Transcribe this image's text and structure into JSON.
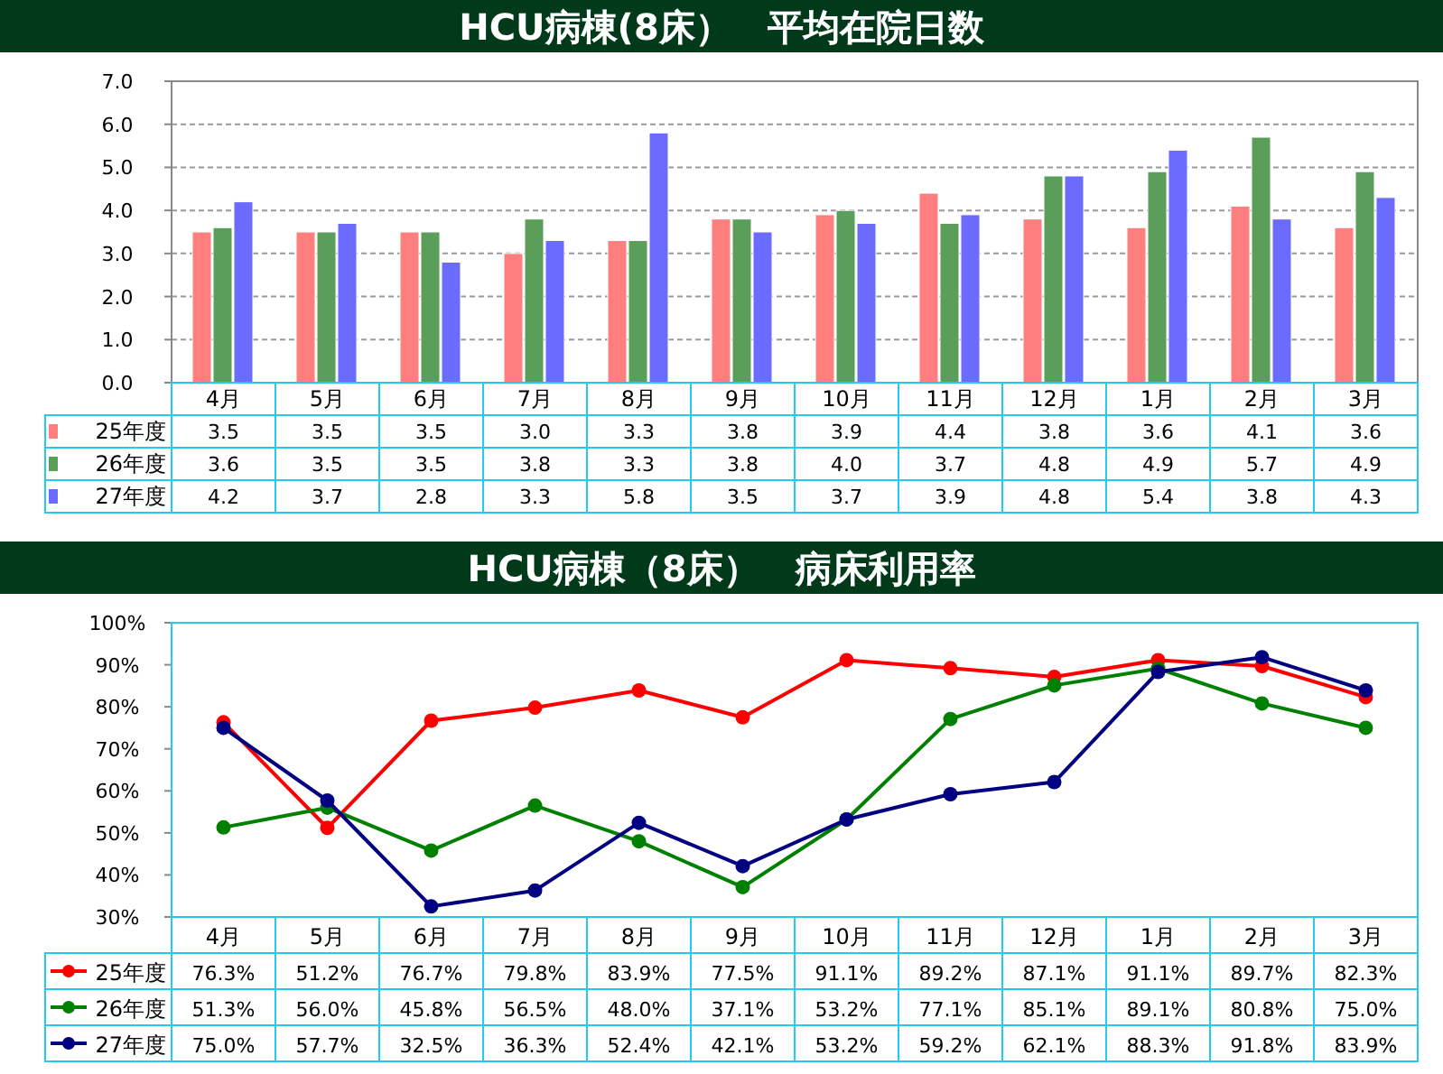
{
  "chart_data": [
    {
      "type": "bar",
      "title": "HCU病棟(8床）　平均在院日数",
      "categories": [
        "4月",
        "5月",
        "6月",
        "7月",
        "8月",
        "9月",
        "10月",
        "11月",
        "12月",
        "1月",
        "2月",
        "3月"
      ],
      "series": [
        {
          "name": "25年度",
          "color": "#ff7f7f",
          "values": [
            3.5,
            3.5,
            3.5,
            3.0,
            3.3,
            3.8,
            3.9,
            4.4,
            3.8,
            3.6,
            4.1,
            3.6
          ],
          "value_labels": [
            "3.5",
            "3.5",
            "3.5",
            "3.0",
            "3.3",
            "3.8",
            "3.9",
            "4.4",
            "3.8",
            "3.6",
            "4.1",
            "3.6"
          ]
        },
        {
          "name": "26年度",
          "color": "#5a9e5a",
          "values": [
            3.6,
            3.5,
            3.5,
            3.8,
            3.3,
            3.8,
            4.0,
            3.7,
            4.8,
            4.9,
            5.7,
            4.9
          ],
          "value_labels": [
            "3.6",
            "3.5",
            "3.5",
            "3.8",
            "3.3",
            "3.8",
            "4.0",
            "3.7",
            "4.8",
            "4.9",
            "5.7",
            "4.9"
          ]
        },
        {
          "name": "27年度",
          "color": "#6b6bff",
          "values": [
            4.2,
            3.7,
            2.8,
            3.3,
            5.8,
            3.5,
            3.7,
            3.9,
            4.8,
            5.4,
            3.8,
            4.3
          ],
          "value_labels": [
            "4.2",
            "3.7",
            "2.8",
            "3.3",
            "5.8",
            "3.5",
            "3.7",
            "3.9",
            "4.8",
            "5.4",
            "3.8",
            "4.3"
          ]
        }
      ],
      "ylim": [
        0,
        7
      ],
      "yticks": [
        {
          "value": 0,
          "label": "0.0"
        },
        {
          "value": 1,
          "label": "1.0"
        },
        {
          "value": 2,
          "label": "2.0"
        },
        {
          "value": 3,
          "label": "3.0"
        },
        {
          "value": 4,
          "label": "4.0"
        },
        {
          "value": 5,
          "label": "5.0"
        },
        {
          "value": 6,
          "label": "6.0"
        },
        {
          "value": 7,
          "label": "7.0"
        }
      ],
      "grid": "y",
      "legend": "bottom left"
    },
    {
      "type": "line",
      "title": "HCU病棟（8床）　病床利用率",
      "categories": [
        "4月",
        "5月",
        "6月",
        "7月",
        "8月",
        "9月",
        "10月",
        "11月",
        "12月",
        "1月",
        "2月",
        "3月"
      ],
      "series": [
        {
          "name": "25年度",
          "color": "#ff0000",
          "values": [
            76.3,
            51.2,
            76.7,
            79.8,
            83.9,
            77.5,
            91.1,
            89.2,
            87.1,
            91.1,
            89.7,
            82.3
          ],
          "value_labels": [
            "76.3%",
            "51.2%",
            "76.7%",
            "79.8%",
            "83.9%",
            "77.5%",
            "91.1%",
            "89.2%",
            "87.1%",
            "91.1%",
            "89.7%",
            "82.3%"
          ]
        },
        {
          "name": "26年度",
          "color": "#008000",
          "values": [
            51.3,
            56.0,
            45.8,
            56.5,
            48.0,
            37.1,
            53.2,
            77.1,
            85.1,
            89.1,
            80.8,
            75.0
          ],
          "value_labels": [
            "51.3%",
            "56.0%",
            "45.8%",
            "56.5%",
            "48.0%",
            "37.1%",
            "53.2%",
            "77.1%",
            "85.1%",
            "89.1%",
            "80.8%",
            "75.0%"
          ]
        },
        {
          "name": "27年度",
          "color": "#000080",
          "values": [
            75.0,
            57.7,
            32.5,
            36.3,
            52.4,
            42.1,
            53.2,
            59.2,
            62.1,
            88.3,
            91.8,
            83.9
          ],
          "value_labels": [
            "75.0%",
            "57.7%",
            "32.5%",
            "36.3%",
            "52.4%",
            "42.1%",
            "53.2%",
            "59.2%",
            "62.1%",
            "88.3%",
            "91.8%",
            "83.9%"
          ]
        }
      ],
      "ylim": [
        30,
        100
      ],
      "yticks": [
        {
          "value": 30,
          "label": "30%"
        },
        {
          "value": 40,
          "label": "40%"
        },
        {
          "value": 50,
          "label": "50%"
        },
        {
          "value": 60,
          "label": "60%"
        },
        {
          "value": 70,
          "label": "70%"
        },
        {
          "value": 80,
          "label": "80%"
        },
        {
          "value": 90,
          "label": "90%"
        },
        {
          "value": 100,
          "label": "100%"
        }
      ],
      "grid": false,
      "legend": "bottom left",
      "marker": "circle",
      "line_style": "solid"
    }
  ]
}
